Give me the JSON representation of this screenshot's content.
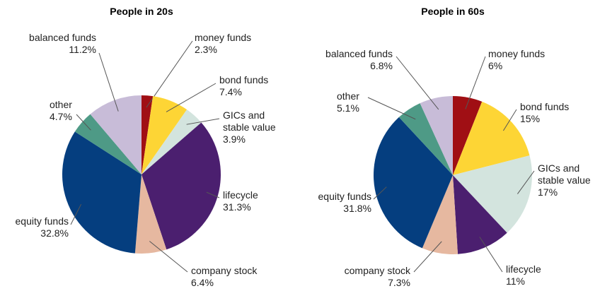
{
  "chart_data": [
    {
      "type": "pie",
      "title": "People in 20s",
      "categories": [
        "money funds",
        "bond funds",
        "GICs and stable value",
        "lifecycle",
        "company stock",
        "equity funds",
        "other",
        "balanced funds"
      ],
      "values": [
        2.3,
        7.4,
        3.9,
        31.3,
        6.4,
        32.8,
        4.7,
        11.2
      ],
      "value_labels": [
        "2.3%",
        "7.4%",
        "3.9%",
        "31.3%",
        "6.4%",
        "32.8%",
        "4.7%",
        "11.2%"
      ],
      "colors": [
        "#a00f14",
        "#fdd535",
        "#d3e4de",
        "#4b1f6f",
        "#e6b8a0",
        "#053e7f",
        "#4e9a86",
        "#c8bcd8"
      ]
    },
    {
      "type": "pie",
      "title": "People in 60s",
      "categories": [
        "money funds",
        "bond funds",
        "GICs and stable value",
        "lifecycle",
        "company stock",
        "equity funds",
        "other",
        "balanced funds"
      ],
      "values": [
        6,
        15,
        17,
        11,
        7.3,
        31.8,
        5.1,
        6.8
      ],
      "value_labels": [
        "6%",
        "15%",
        "17%",
        "11%",
        "7.3%",
        "31.8%",
        "5.1%",
        "6.8%"
      ],
      "colors": [
        "#a00f14",
        "#fdd535",
        "#d3e4de",
        "#4b1f6f",
        "#e6b8a0",
        "#053e7f",
        "#4e9a86",
        "#c8bcd8"
      ]
    }
  ]
}
